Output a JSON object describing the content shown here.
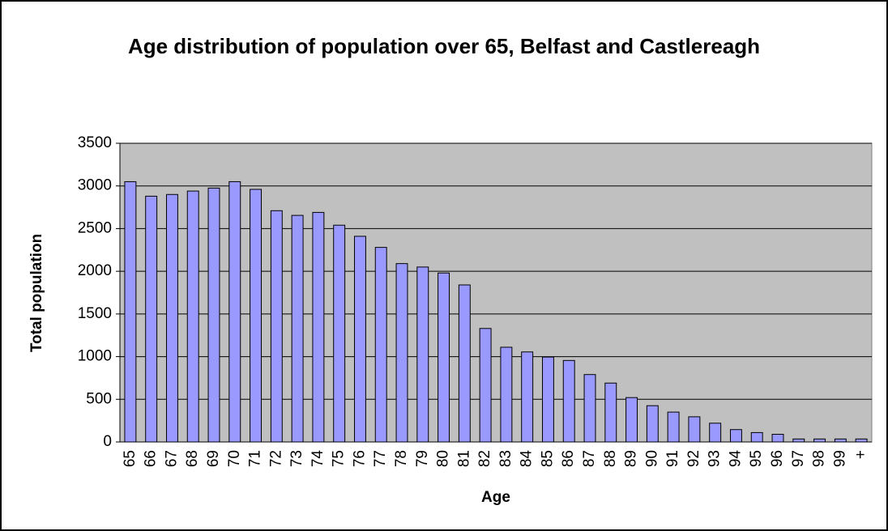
{
  "chart_data": {
    "type": "bar",
    "title": "Age distribution of population over 65, Belfast and Castlereagh",
    "x_label": "Age",
    "y_label": "Total population",
    "categories": [
      "65",
      "66",
      "67",
      "68",
      "69",
      "70",
      "71",
      "72",
      "73",
      "74",
      "75",
      "76",
      "77",
      "78",
      "79",
      "80",
      "81",
      "82",
      "83",
      "84",
      "85",
      "86",
      "87",
      "88",
      "89",
      "90",
      "91",
      "92",
      "93",
      "94",
      "95",
      "96",
      "97",
      "98",
      "99",
      "+"
    ],
    "values": [
      3050,
      2880,
      2900,
      2940,
      2975,
      3050,
      2960,
      2710,
      2655,
      2690,
      2540,
      2410,
      2280,
      2090,
      2050,
      1980,
      1840,
      1330,
      1110,
      1055,
      995,
      955,
      790,
      690,
      520,
      425,
      350,
      295,
      220,
      145,
      110,
      90,
      35,
      35,
      35,
      35
    ],
    "color": "#9999ff",
    "plot_background": "#c0c0c0",
    "ylim": [
      0,
      3500
    ],
    "yticks": [
      0,
      500,
      1000,
      1500,
      2000,
      2500,
      3000,
      3500
    ],
    "grid": true
  }
}
